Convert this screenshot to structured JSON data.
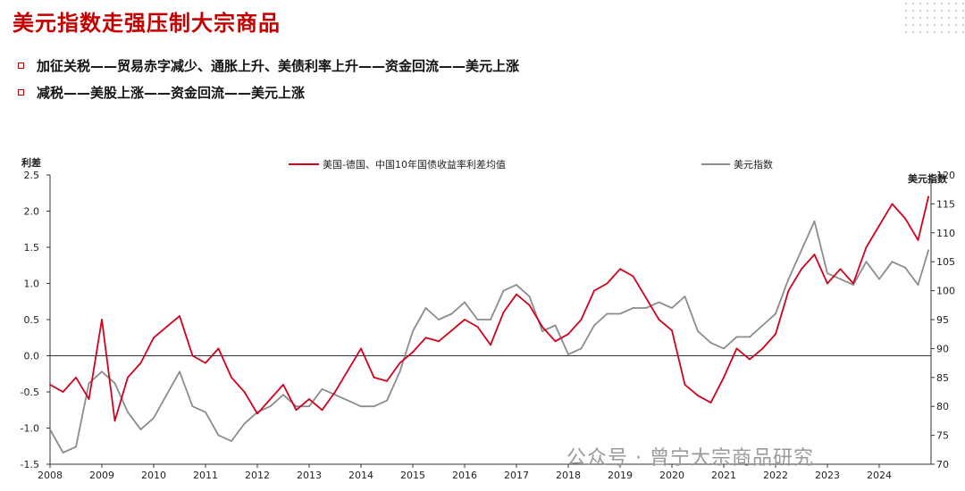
{
  "header": {
    "title": "美元指数走强压制大宗商品",
    "bullets": [
      "加征关税——贸易赤字减少、通胀上升、美债利率上升——资金回流——美元上涨",
      "减税——美股上涨——资金回流——美元上涨"
    ]
  },
  "watermark": "公众号 · 曾宁大宗商品研究",
  "colors": {
    "spread": "#d0021b",
    "dxy": "#8c8c8c",
    "title": "#c40000"
  },
  "chart_data": {
    "type": "line",
    "left_axis_label": "利差",
    "right_axis_label": "美元指数",
    "ylim_left": [
      -1.5,
      2.5
    ],
    "ylim_right": [
      70,
      120
    ],
    "left_ticks": [
      "2.5",
      "2.0",
      "1.5",
      "1.0",
      "0.5",
      "0.0",
      "-0.5",
      "-1.0",
      "-1.5"
    ],
    "right_ticks": [
      "120",
      "115",
      "110",
      "105",
      "100",
      "95",
      "90",
      "85",
      "80",
      "75",
      "70"
    ],
    "x_ticks": [
      "2008",
      "2009",
      "2010",
      "2011",
      "2012",
      "2013",
      "2014",
      "2015",
      "2016",
      "2017",
      "2018",
      "2019",
      "2020",
      "2021",
      "2022",
      "2023",
      "2024"
    ],
    "xlim": [
      2008.0,
      2025.0
    ],
    "series": [
      {
        "name": "美国-德国、中国10年国债收益率利差均值",
        "axis": "left",
        "color": "#d0021b",
        "x": [
          2008.0,
          2008.25,
          2008.5,
          2008.75,
          2009.0,
          2009.25,
          2009.5,
          2009.75,
          2010.0,
          2010.25,
          2010.5,
          2010.75,
          2011.0,
          2011.25,
          2011.5,
          2011.75,
          2012.0,
          2012.25,
          2012.5,
          2012.75,
          2013.0,
          2013.25,
          2013.5,
          2013.75,
          2014.0,
          2014.25,
          2014.5,
          2014.75,
          2015.0,
          2015.25,
          2015.5,
          2015.75,
          2016.0,
          2016.25,
          2016.5,
          2016.75,
          2017.0,
          2017.25,
          2017.5,
          2017.75,
          2018.0,
          2018.25,
          2018.5,
          2018.75,
          2019.0,
          2019.25,
          2019.5,
          2019.75,
          2020.0,
          2020.25,
          2020.5,
          2020.75,
          2021.0,
          2021.25,
          2021.5,
          2021.75,
          2022.0,
          2022.25,
          2022.5,
          2022.75,
          2023.0,
          2023.25,
          2023.5,
          2023.75,
          2024.0,
          2024.25,
          2024.5,
          2024.75,
          2024.95
        ],
        "values": [
          -0.4,
          -0.5,
          -0.3,
          -0.6,
          0.5,
          -0.9,
          -0.3,
          -0.1,
          0.25,
          0.4,
          0.55,
          0.0,
          -0.1,
          0.1,
          -0.3,
          -0.5,
          -0.8,
          -0.6,
          -0.4,
          -0.75,
          -0.6,
          -0.75,
          -0.5,
          -0.2,
          0.1,
          -0.3,
          -0.35,
          -0.1,
          0.05,
          0.25,
          0.2,
          0.35,
          0.5,
          0.4,
          0.15,
          0.6,
          0.85,
          0.7,
          0.4,
          0.2,
          0.3,
          0.5,
          0.9,
          1.0,
          1.2,
          1.1,
          0.8,
          0.5,
          0.35,
          -0.4,
          -0.55,
          -0.65,
          -0.3,
          0.1,
          -0.05,
          0.1,
          0.3,
          0.9,
          1.2,
          1.4,
          1.0,
          1.2,
          1.0,
          1.5,
          1.8,
          2.1,
          1.9,
          1.6,
          2.2
        ]
      },
      {
        "name": "美元指数",
        "axis": "right",
        "color": "#8c8c8c",
        "x": [
          2008.0,
          2008.25,
          2008.5,
          2008.75,
          2009.0,
          2009.25,
          2009.5,
          2009.75,
          2010.0,
          2010.25,
          2010.5,
          2010.75,
          2011.0,
          2011.25,
          2011.5,
          2011.75,
          2012.0,
          2012.25,
          2012.5,
          2012.75,
          2013.0,
          2013.25,
          2013.5,
          2013.75,
          2014.0,
          2014.25,
          2014.5,
          2014.75,
          2015.0,
          2015.25,
          2015.5,
          2015.75,
          2016.0,
          2016.25,
          2016.5,
          2016.75,
          2017.0,
          2017.25,
          2017.5,
          2017.75,
          2018.0,
          2018.25,
          2018.5,
          2018.75,
          2019.0,
          2019.25,
          2019.5,
          2019.75,
          2020.0,
          2020.25,
          2020.5,
          2020.75,
          2021.0,
          2021.25,
          2021.5,
          2021.75,
          2022.0,
          2022.25,
          2022.5,
          2022.75,
          2023.0,
          2023.25,
          2023.5,
          2023.75,
          2024.0,
          2024.25,
          2024.5,
          2024.75,
          2024.95
        ],
        "values": [
          76,
          72,
          73,
          84,
          86,
          84,
          79,
          76,
          78,
          82,
          86,
          80,
          79,
          75,
          74,
          77,
          79,
          80,
          82,
          80,
          80,
          83,
          82,
          81,
          80,
          80,
          81,
          86,
          93,
          97,
          95,
          96,
          98,
          95,
          95,
          100,
          101,
          99,
          93,
          94,
          89,
          90,
          94,
          96,
          96,
          97,
          97,
          98,
          97,
          99,
          93,
          91,
          90,
          92,
          92,
          94,
          96,
          102,
          107,
          112,
          103,
          102,
          101,
          105,
          102,
          105,
          104,
          101,
          107
        ]
      }
    ]
  }
}
